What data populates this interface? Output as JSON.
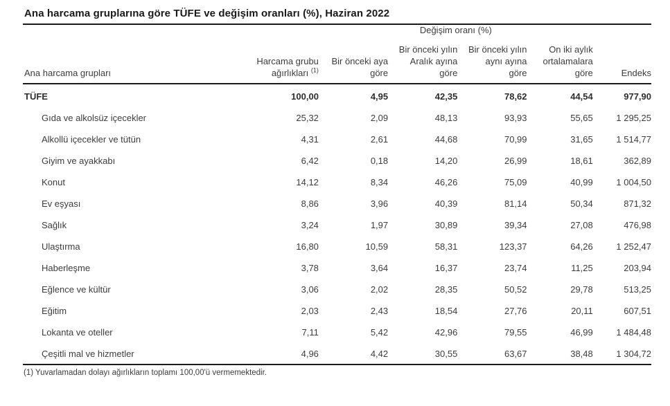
{
  "title": "Ana harcama gruplarına göre TÜFE ve değişim oranları (%), Haziran 2022",
  "table": {
    "group_header": "Değişim oranı (%)",
    "columns": {
      "name": "Ana harcama grupları",
      "weight": "Harcama grubu ağırlıkları",
      "weight_marker": "(1)",
      "monthly": "Bir önceki aya göre",
      "since_december": "Bir önceki yılın Aralık ayına göre",
      "same_month_prev_year": "Bir önceki yılın aynı ayına göre",
      "twelve_month_avg": "On iki aylık ortalamalara göre",
      "index": "Endeks"
    },
    "rows": [
      {
        "name": "TÜFE",
        "bold": true,
        "values": [
          "100,00",
          "4,95",
          "42,35",
          "78,62",
          "44,54",
          "977,90"
        ]
      },
      {
        "name": "Gıda ve alkolsüz içecekler",
        "bold": false,
        "values": [
          "25,32",
          "2,09",
          "48,13",
          "93,93",
          "55,65",
          "1 295,25"
        ]
      },
      {
        "name": "Alkollü içecekler ve tütün",
        "bold": false,
        "values": [
          "4,31",
          "2,61",
          "44,68",
          "70,99",
          "31,65",
          "1 514,77"
        ]
      },
      {
        "name": "Giyim ve ayakkabı",
        "bold": false,
        "values": [
          "6,42",
          "0,18",
          "14,20",
          "26,99",
          "18,61",
          "362,89"
        ]
      },
      {
        "name": "Konut",
        "bold": false,
        "values": [
          "14,12",
          "8,34",
          "46,26",
          "75,09",
          "40,99",
          "1 004,50"
        ]
      },
      {
        "name": "Ev eşyası",
        "bold": false,
        "values": [
          "8,86",
          "3,96",
          "40,39",
          "81,14",
          "50,34",
          "871,32"
        ]
      },
      {
        "name": "Sağlık",
        "bold": false,
        "values": [
          "3,24",
          "1,97",
          "30,89",
          "39,34",
          "27,08",
          "476,98"
        ]
      },
      {
        "name": "Ulaştırma",
        "bold": false,
        "values": [
          "16,80",
          "10,59",
          "58,31",
          "123,37",
          "64,26",
          "1 252,47"
        ]
      },
      {
        "name": "Haberleşme",
        "bold": false,
        "values": [
          "3,78",
          "3,64",
          "16,37",
          "23,74",
          "11,25",
          "203,94"
        ]
      },
      {
        "name": "Eğlence ve kültür",
        "bold": false,
        "values": [
          "3,06",
          "2,02",
          "28,35",
          "50,52",
          "29,78",
          "513,25"
        ]
      },
      {
        "name": "Eğitim",
        "bold": false,
        "values": [
          "2,03",
          "2,43",
          "18,54",
          "27,76",
          "20,11",
          "607,51"
        ]
      },
      {
        "name": "Lokanta ve oteller",
        "bold": false,
        "values": [
          "7,11",
          "5,42",
          "42,96",
          "79,55",
          "46,99",
          "1 484,48"
        ]
      },
      {
        "name": "Çeşitli mal ve hizmetler",
        "bold": false,
        "values": [
          "4,96",
          "4,42",
          "30,55",
          "63,67",
          "38,48",
          "1 304,72"
        ]
      }
    ]
  },
  "footnote": "(1) Yuvarlamadan dolayı ağırlıkların toplamı 100,00'ü vermemektedir.",
  "colors": {
    "text": "#3c3c3c",
    "title": "#1a1a1a",
    "rule": "#1a1a1a",
    "background": "#ffffff"
  },
  "chart_data": {
    "type": "table",
    "title": "Ana harcama gruplarına göre TÜFE ve değişim oranları (%), Haziran 2022",
    "column_group": {
      "label": "Değişim oranı (%)",
      "spans": [
        "Bir önceki aya göre",
        "Bir önceki yılın Aralık ayına göre",
        "Bir önceki yılın aynı ayına göre",
        "On iki aylık ortalamalara göre"
      ]
    },
    "columns": [
      "Ana harcama grupları",
      "Harcama grubu ağırlıkları (1)",
      "Bir önceki aya göre",
      "Bir önceki yılın Aralık ayına göre",
      "Bir önceki yılın aynı ayına göre",
      "On iki aylık ortalamalara göre",
      "Endeks"
    ],
    "rows": [
      [
        "TÜFE",
        100.0,
        4.95,
        42.35,
        78.62,
        44.54,
        977.9
      ],
      [
        "Gıda ve alkolsüz içecekler",
        25.32,
        2.09,
        48.13,
        93.93,
        55.65,
        1295.25
      ],
      [
        "Alkollü içecekler ve tütün",
        4.31,
        2.61,
        44.68,
        70.99,
        31.65,
        1514.77
      ],
      [
        "Giyim ve ayakkabı",
        6.42,
        0.18,
        14.2,
        26.99,
        18.61,
        362.89
      ],
      [
        "Konut",
        14.12,
        8.34,
        46.26,
        75.09,
        40.99,
        1004.5
      ],
      [
        "Ev eşyası",
        8.86,
        3.96,
        40.39,
        81.14,
        50.34,
        871.32
      ],
      [
        "Sağlık",
        3.24,
        1.97,
        30.89,
        39.34,
        27.08,
        476.98
      ],
      [
        "Ulaştırma",
        16.8,
        10.59,
        58.31,
        123.37,
        64.26,
        1252.47
      ],
      [
        "Haberleşme",
        3.78,
        3.64,
        16.37,
        23.74,
        11.25,
        203.94
      ],
      [
        "Eğlence ve kültür",
        3.06,
        2.02,
        28.35,
        50.52,
        29.78,
        513.25
      ],
      [
        "Eğitim",
        2.03,
        2.43,
        18.54,
        27.76,
        20.11,
        607.51
      ],
      [
        "Lokanta ve oteller",
        7.11,
        5.42,
        42.96,
        79.55,
        46.99,
        1484.48
      ],
      [
        "Çeşitli mal ve hizmetler",
        4.96,
        4.42,
        30.55,
        63.67,
        38.48,
        1304.72
      ]
    ],
    "footnote": "(1) Yuvarlamadan dolayı ağırlıkların toplamı 100,00'ü vermemektedir.",
    "decimal_separator": ",",
    "thousands_separator": " "
  }
}
